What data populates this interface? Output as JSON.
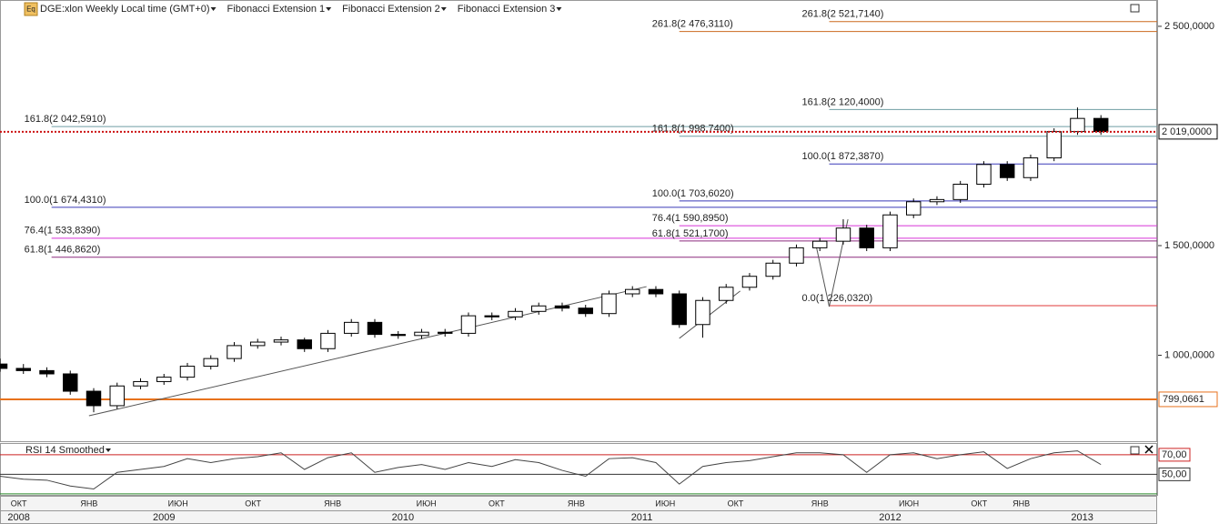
{
  "chart_data": {
    "type": "candlestick",
    "header": {
      "symbol": "DGE:xlon Weekly Local time (GMT+0)",
      "tools": [
        "Fibonacci Extension 1",
        "Fibonacci Extension 2",
        "Fibonacci Extension 3"
      ],
      "icon": "Eq"
    },
    "xlim": [
      0,
      247
    ],
    "xticks": [
      {
        "value": 4,
        "label": "ОКТ"
      },
      {
        "value": 19,
        "label": "ЯНВ"
      },
      {
        "value": 38,
        "label": "ИЮН"
      },
      {
        "value": 54,
        "label": "ОКТ"
      },
      {
        "value": 71,
        "label": "ЯНВ"
      },
      {
        "value": 91,
        "label": "ИЮН"
      },
      {
        "value": 106,
        "label": "ОКТ"
      },
      {
        "value": 123,
        "label": "ЯНВ"
      },
      {
        "value": 142,
        "label": "ИЮН"
      },
      {
        "value": 157,
        "label": "ОКТ"
      },
      {
        "value": 175,
        "label": "ЯНВ"
      },
      {
        "value": 194,
        "label": "ИЮН"
      },
      {
        "value": 209,
        "label": "ОКТ"
      },
      {
        "value": 218,
        "label": "ЯНВ"
      }
    ],
    "year_ticks": [
      {
        "value": 4,
        "label": "2008"
      },
      {
        "value": 35,
        "label": "2009"
      },
      {
        "value": 86,
        "label": "2010"
      },
      {
        "value": 137,
        "label": "2011"
      },
      {
        "value": 190,
        "label": "2012"
      },
      {
        "value": 231,
        "label": "2013"
      }
    ],
    "ylim": [
      608,
      2620
    ],
    "yticks": [
      {
        "value": 2500,
        "label": "2 500,0000"
      },
      {
        "value": 1500,
        "label": "1 500,0000"
      },
      {
        "value": 1000,
        "label": "1 000,0000"
      }
    ],
    "x": [
      0,
      5,
      10,
      15,
      20,
      25,
      30,
      35,
      40,
      45,
      50,
      55,
      60,
      65,
      70,
      75,
      80,
      85,
      90,
      95,
      100,
      105,
      110,
      115,
      120,
      125,
      130,
      135,
      140,
      145,
      150,
      155,
      160,
      165,
      170,
      175,
      180,
      185,
      190,
      195,
      200,
      205,
      210,
      215,
      220,
      225,
      230,
      235
    ],
    "open": [
      960,
      940,
      930,
      915,
      836,
      770,
      860,
      880,
      900,
      950,
      985,
      1044,
      1060,
      1070,
      1030,
      1100,
      1150,
      1095,
      1090,
      1105,
      1100,
      1180,
      1175,
      1200,
      1225,
      1215,
      1190,
      1280,
      1300,
      1280,
      1140,
      1250,
      1310,
      1360,
      1420,
      1490,
      1520,
      1580,
      1490,
      1640,
      1700,
      1710,
      1780,
      1870,
      1810,
      1900,
      2020,
      2080
    ],
    "high": [
      985,
      960,
      945,
      930,
      850,
      875,
      895,
      915,
      965,
      1000,
      1060,
      1075,
      1085,
      1080,
      1115,
      1165,
      1165,
      1110,
      1120,
      1120,
      1195,
      1195,
      1215,
      1240,
      1240,
      1230,
      1295,
      1315,
      1315,
      1295,
      1265,
      1325,
      1375,
      1435,
      1505,
      1535,
      1620,
      1595,
      1655,
      1715,
      1725,
      1795,
      1885,
      1885,
      1915,
      2035,
      2130,
      2095
    ],
    "low": [
      925,
      915,
      900,
      820,
      740,
      755,
      845,
      865,
      885,
      935,
      970,
      1030,
      1045,
      1015,
      1015,
      1085,
      1080,
      1075,
      1075,
      1085,
      1085,
      1160,
      1160,
      1185,
      1200,
      1175,
      1175,
      1265,
      1265,
      1125,
      1080,
      1235,
      1295,
      1345,
      1405,
      1475,
      1505,
      1475,
      1475,
      1625,
      1685,
      1695,
      1765,
      1795,
      1795,
      1885,
      2005,
      2005
    ],
    "close": [
      940,
      930,
      915,
      836,
      770,
      860,
      880,
      900,
      950,
      985,
      1044,
      1060,
      1070,
      1030,
      1100,
      1150,
      1095,
      1090,
      1105,
      1100,
      1180,
      1175,
      1200,
      1225,
      1215,
      1190,
      1280,
      1300,
      1280,
      1140,
      1250,
      1310,
      1360,
      1420,
      1490,
      1520,
      1580,
      1490,
      1640,
      1700,
      1710,
      1780,
      1870,
      1810,
      1900,
      2020,
      2080,
      2020
    ],
    "up_color": "#ffffff",
    "down_color": "#000000",
    "extensions": [
      {
        "x_start": 11,
        "line": {
          "x": [
            19,
            138
          ],
          "y": [
            724,
            1313
          ]
        },
        "levels": [
          {
            "label": "161.8(2 042,5910)",
            "value": 2042.591,
            "color": "#6f9ea3"
          },
          {
            "label": "100.0(1 674,4310)",
            "value": 1674.431,
            "color": "#3a3ab8"
          },
          {
            "label": "76.4(1 533,8390)",
            "value": 1533.839,
            "color": "#d633d6"
          },
          {
            "label": "61.8(1 446,8620)",
            "value": 1446.862,
            "color": "#8b2a7e"
          }
        ]
      },
      {
        "x_start": 145,
        "line": {
          "x": [
            145,
            158
          ],
          "y": [
            1077,
            1293
          ]
        },
        "levels": [
          {
            "label": "261.8(2 476,3110)",
            "value": 2476.311,
            "color": "#cc6a1e"
          },
          {
            "label": "161.8(1 998,7400)",
            "value": 1998.74,
            "color": "#6f9ea3"
          },
          {
            "label": "100.0(1 703,6020)",
            "value": 1703.602,
            "color": "#3a3ab8"
          },
          {
            "label": "76.4(1 590,8950)",
            "value": 1590.895,
            "color": "#d633d6"
          },
          {
            "label": "61.8(1 521,1700)",
            "value": 1521.17,
            "color": "#8b2a7e"
          }
        ]
      },
      {
        "x_start": 177,
        "line": {
          "x": [
            174,
            177,
            181
          ],
          "y": [
            1520,
            1222,
            1620
          ]
        },
        "levels": [
          {
            "label": "261.8(2 521,7140)",
            "value": 2521.714,
            "color": "#cc6a1e"
          },
          {
            "label": "161.8(2 120,4000)",
            "value": 2120.4,
            "color": "#6f9ea3"
          },
          {
            "label": "100.0(1 872,3870)",
            "value": 1872.387,
            "color": "#3a3ab8"
          },
          {
            "label": "0.0(1 226,0320)",
            "value": 1226.032,
            "color": "#e03a3a"
          }
        ]
      }
    ],
    "current": {
      "value": 2019,
      "label": "2 019,0000",
      "color": "#cc1111"
    },
    "hline": {
      "value": 799.0661,
      "label": "799,0661",
      "color": "#e8721c"
    },
    "rsi": {
      "title": "RSI 14 Smoothed",
      "ylim": [
        28,
        82
      ],
      "color": "#444444",
      "values": [
        48,
        45,
        44,
        38,
        35,
        52,
        55,
        58,
        66,
        62,
        66,
        68,
        72,
        55,
        67,
        72,
        52,
        57,
        60,
        55,
        62,
        58,
        65,
        62,
        54,
        48,
        66,
        67,
        62,
        40,
        58,
        62,
        64,
        68,
        72,
        72,
        70,
        52,
        70,
        72,
        66,
        70,
        73,
        56,
        66,
        72,
        74,
        60
      ],
      "levels": [
        {
          "value": 70,
          "label": "70,00",
          "color": "#cc2222"
        },
        {
          "value": 50,
          "label": "50,00",
          "color": "#333333"
        },
        {
          "value": 30,
          "color": "#2a8a2a"
        }
      ]
    }
  }
}
